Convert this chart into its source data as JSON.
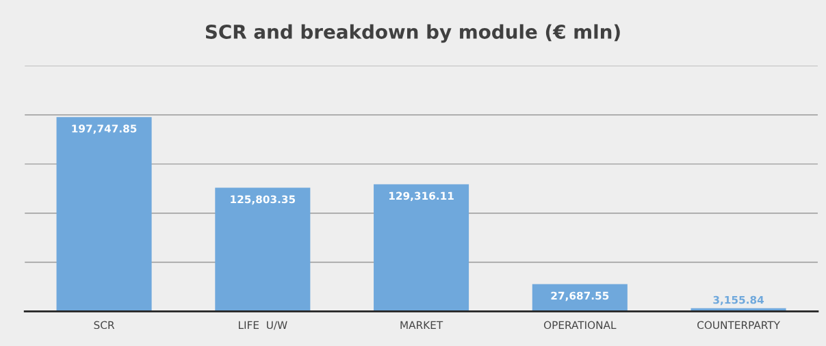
{
  "chart_data": {
    "type": "bar",
    "title": "SCR and breakdown by module (€ mln)",
    "categories": [
      "SCR",
      "LIFE  U/W",
      "MARKET",
      "OPERATIONAL",
      "COUNTERPARTY"
    ],
    "values": [
      197747.85,
      125803.35,
      129316.11,
      27687.55,
      3155.84
    ],
    "value_labels": [
      "197,747.85",
      "125,803.35",
      "129,316.11",
      "27,687.55",
      "3,155.84"
    ],
    "color": "#6fa8dc",
    "ylim": [
      0,
      250000
    ],
    "yticks": [
      {
        "value": 0,
        "label": null
      },
      {
        "value": 50000,
        "label": null
      },
      {
        "value": 100000,
        "label": null
      },
      {
        "value": 150000,
        "label": null
      },
      {
        "value": 200000,
        "label": null
      },
      {
        "value": 250000,
        "label": null
      }
    ],
    "grid": "y",
    "tick_labels": "x",
    "legend": false
  }
}
